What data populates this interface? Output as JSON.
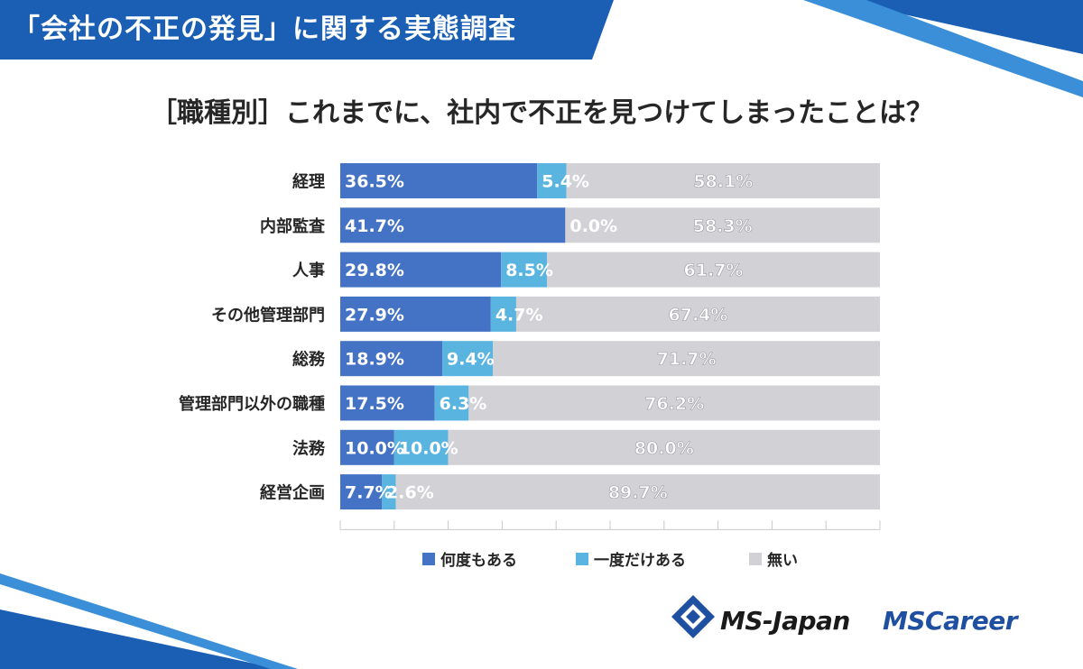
{
  "header": {
    "title": "「会社の不正の発見」に関する実態調査"
  },
  "chart_data": {
    "type": "bar",
    "orientation": "horizontal",
    "stacked": true,
    "title": "［職種別］これまでに、社内で不正を見つけてしまったことは？",
    "xlim": [
      0,
      100
    ],
    "categories": [
      "経理",
      "内部監査",
      "人事",
      "その他管理部門",
      "総務",
      "管理部門以外の職種",
      "法務",
      "経営企画"
    ],
    "series": [
      {
        "name": "何度もある",
        "color": "#4472c4",
        "values": [
          36.5,
          41.7,
          29.8,
          27.9,
          18.9,
          17.5,
          10.0,
          7.7
        ],
        "labels": [
          "36.5%",
          "41.7%",
          "29.8%",
          "27.9%",
          "18.9%",
          "17.5%",
          "10.0%",
          "7.7%"
        ]
      },
      {
        "name": "一度だけある",
        "color": "#5ab4e0",
        "values": [
          5.4,
          0.0,
          8.5,
          4.7,
          9.4,
          6.3,
          10.0,
          2.6
        ],
        "labels": [
          "5.4%",
          "0.0%",
          "8.5%",
          "4.7%",
          "9.4%",
          "6.3%",
          "10.0%",
          "2.6%"
        ]
      },
      {
        "name": "無い",
        "color": "#d2d2d6",
        "values": [
          58.1,
          58.3,
          61.7,
          67.4,
          71.7,
          76.2,
          80.0,
          89.7
        ],
        "labels": [
          "58.1%",
          "58.3%",
          "61.7%",
          "67.4%",
          "71.7%",
          "76.2%",
          "80.0%",
          "89.7%"
        ]
      }
    ],
    "legend_position": "bottom",
    "grid": false
  },
  "logos": {
    "ms_japan": "MS-Japan",
    "ms_career": "MSCareer"
  },
  "colors": {
    "header_blue": "#1a5fb4",
    "accent_blue": "#2a8ad8"
  }
}
